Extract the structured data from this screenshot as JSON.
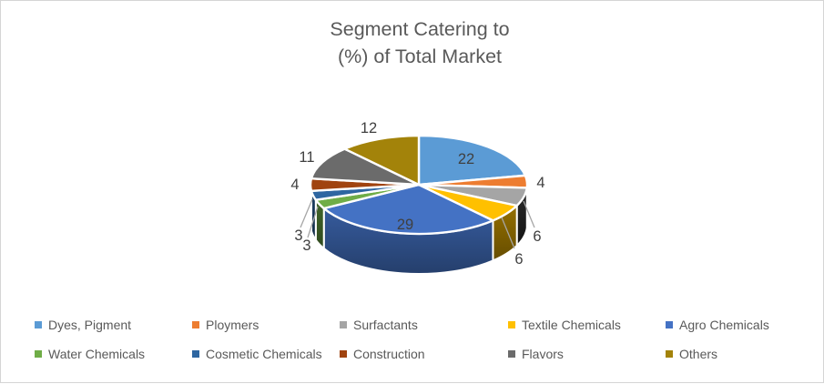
{
  "title": "Segment Catering to\n(%) of Total Market",
  "chart_data": {
    "type": "pie",
    "projection": "3d",
    "title": "Segment Catering to (%) of Total Market",
    "unit": "% of total market",
    "legend_position": "bottom",
    "data_labels": "shown, outside for small slices with leader lines",
    "segments": [
      {
        "label": "Dyes, Pigment",
        "value": 22,
        "color": "#5B9BD5"
      },
      {
        "label": "Ploymers",
        "value": 4,
        "color": "#ED7D31"
      },
      {
        "label": "Surfactants",
        "value": 6,
        "color": "#A5A5A5"
      },
      {
        "label": "Textile Chemicals",
        "value": 6,
        "color": "#FFC000"
      },
      {
        "label": "Agro Chemicals",
        "value": 29,
        "color": "#4472C4"
      },
      {
        "label": "Water Chemicals",
        "value": 3,
        "color": "#6FAD47"
      },
      {
        "label": "Cosmetic Chemicals",
        "value": 3,
        "color": "#2E66A1"
      },
      {
        "label": "Construction",
        "value": 4,
        "color": "#A0430F"
      },
      {
        "label": "Flavors",
        "value": 11,
        "color": "#6B6B6B"
      },
      {
        "label": "Others",
        "value": 12,
        "color": "#A3830A"
      }
    ]
  },
  "colors": {
    "title_text": "#595959",
    "label_text": "#404040",
    "leader_line": "#A6A6A6",
    "legend_text": "#595959",
    "border": "#D5D5D5",
    "background": "#FFFFFF"
  }
}
